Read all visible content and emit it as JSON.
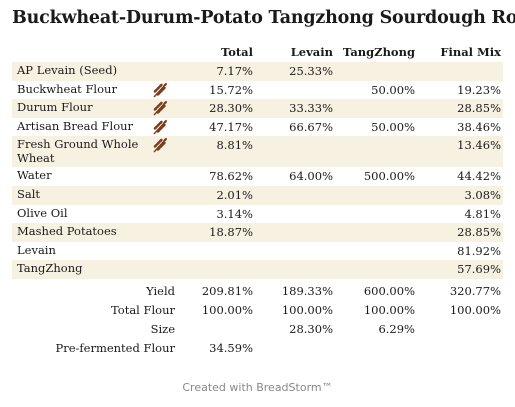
{
  "title": "Buckwheat-Durum-Potato Tangzhong Sourdough Rolls",
  "columns": {
    "total": "Total",
    "levain": "Levain",
    "tangzhong": "TangZhong",
    "final_mix": "Final Mix"
  },
  "rows": [
    {
      "name": "AP Levain (Seed)",
      "total": "7.17%",
      "levain": "25.33%",
      "tangzhong": "",
      "final_mix": "",
      "icon": ""
    },
    {
      "name": "Buckwheat Flour",
      "total": "15.72%",
      "levain": "",
      "tangzhong": "50.00%",
      "final_mix": "19.23%",
      "icon": "wheat-icon"
    },
    {
      "name": "Durum Flour",
      "total": "28.30%",
      "levain": "33.33%",
      "tangzhong": "",
      "final_mix": "28.85%",
      "icon": "wheat-icon"
    },
    {
      "name": "Artisan Bread Flour",
      "total": "47.17%",
      "levain": "66.67%",
      "tangzhong": "50.00%",
      "final_mix": "38.46%",
      "icon": "wheat-icon"
    },
    {
      "name": "Fresh Ground Whole Wheat",
      "total": "8.81%",
      "levain": "",
      "tangzhong": "",
      "final_mix": "13.46%",
      "icon": "wheat-icon"
    },
    {
      "name": "Water",
      "total": "78.62%",
      "levain": "64.00%",
      "tangzhong": "500.00%",
      "final_mix": "44.42%",
      "icon": ""
    },
    {
      "name": "Salt",
      "total": "2.01%",
      "levain": "",
      "tangzhong": "",
      "final_mix": "3.08%",
      "icon": ""
    },
    {
      "name": "Olive Oil",
      "total": "3.14%",
      "levain": "",
      "tangzhong": "",
      "final_mix": "4.81%",
      "icon": ""
    },
    {
      "name": "Mashed Potatoes",
      "total": "18.87%",
      "levain": "",
      "tangzhong": "",
      "final_mix": "28.85%",
      "icon": ""
    },
    {
      "name": "Levain",
      "total": "",
      "levain": "",
      "tangzhong": "",
      "final_mix": "81.92%",
      "icon": ""
    },
    {
      "name": "TangZhong",
      "total": "",
      "levain": "",
      "tangzhong": "",
      "final_mix": "57.69%",
      "icon": ""
    }
  ],
  "summary": [
    {
      "label": "Yield",
      "total": "209.81%",
      "levain": "189.33%",
      "tangzhong": "600.00%",
      "final_mix": "320.77%"
    },
    {
      "label": "Total Flour",
      "total": "100.00%",
      "levain": "100.00%",
      "tangzhong": "100.00%",
      "final_mix": "100.00%"
    },
    {
      "label": "Size",
      "total": "",
      "levain": "28.30%",
      "tangzhong": "6.29%",
      "final_mix": ""
    },
    {
      "label": "Pre-fermented Flour",
      "total": "34.59%",
      "levain": "",
      "tangzhong": "",
      "final_mix": ""
    }
  ],
  "footer": "Created with BreadStorm™",
  "colors": {
    "shade": "#f7f1e2",
    "wheat_icon": "#7a3e1d"
  }
}
